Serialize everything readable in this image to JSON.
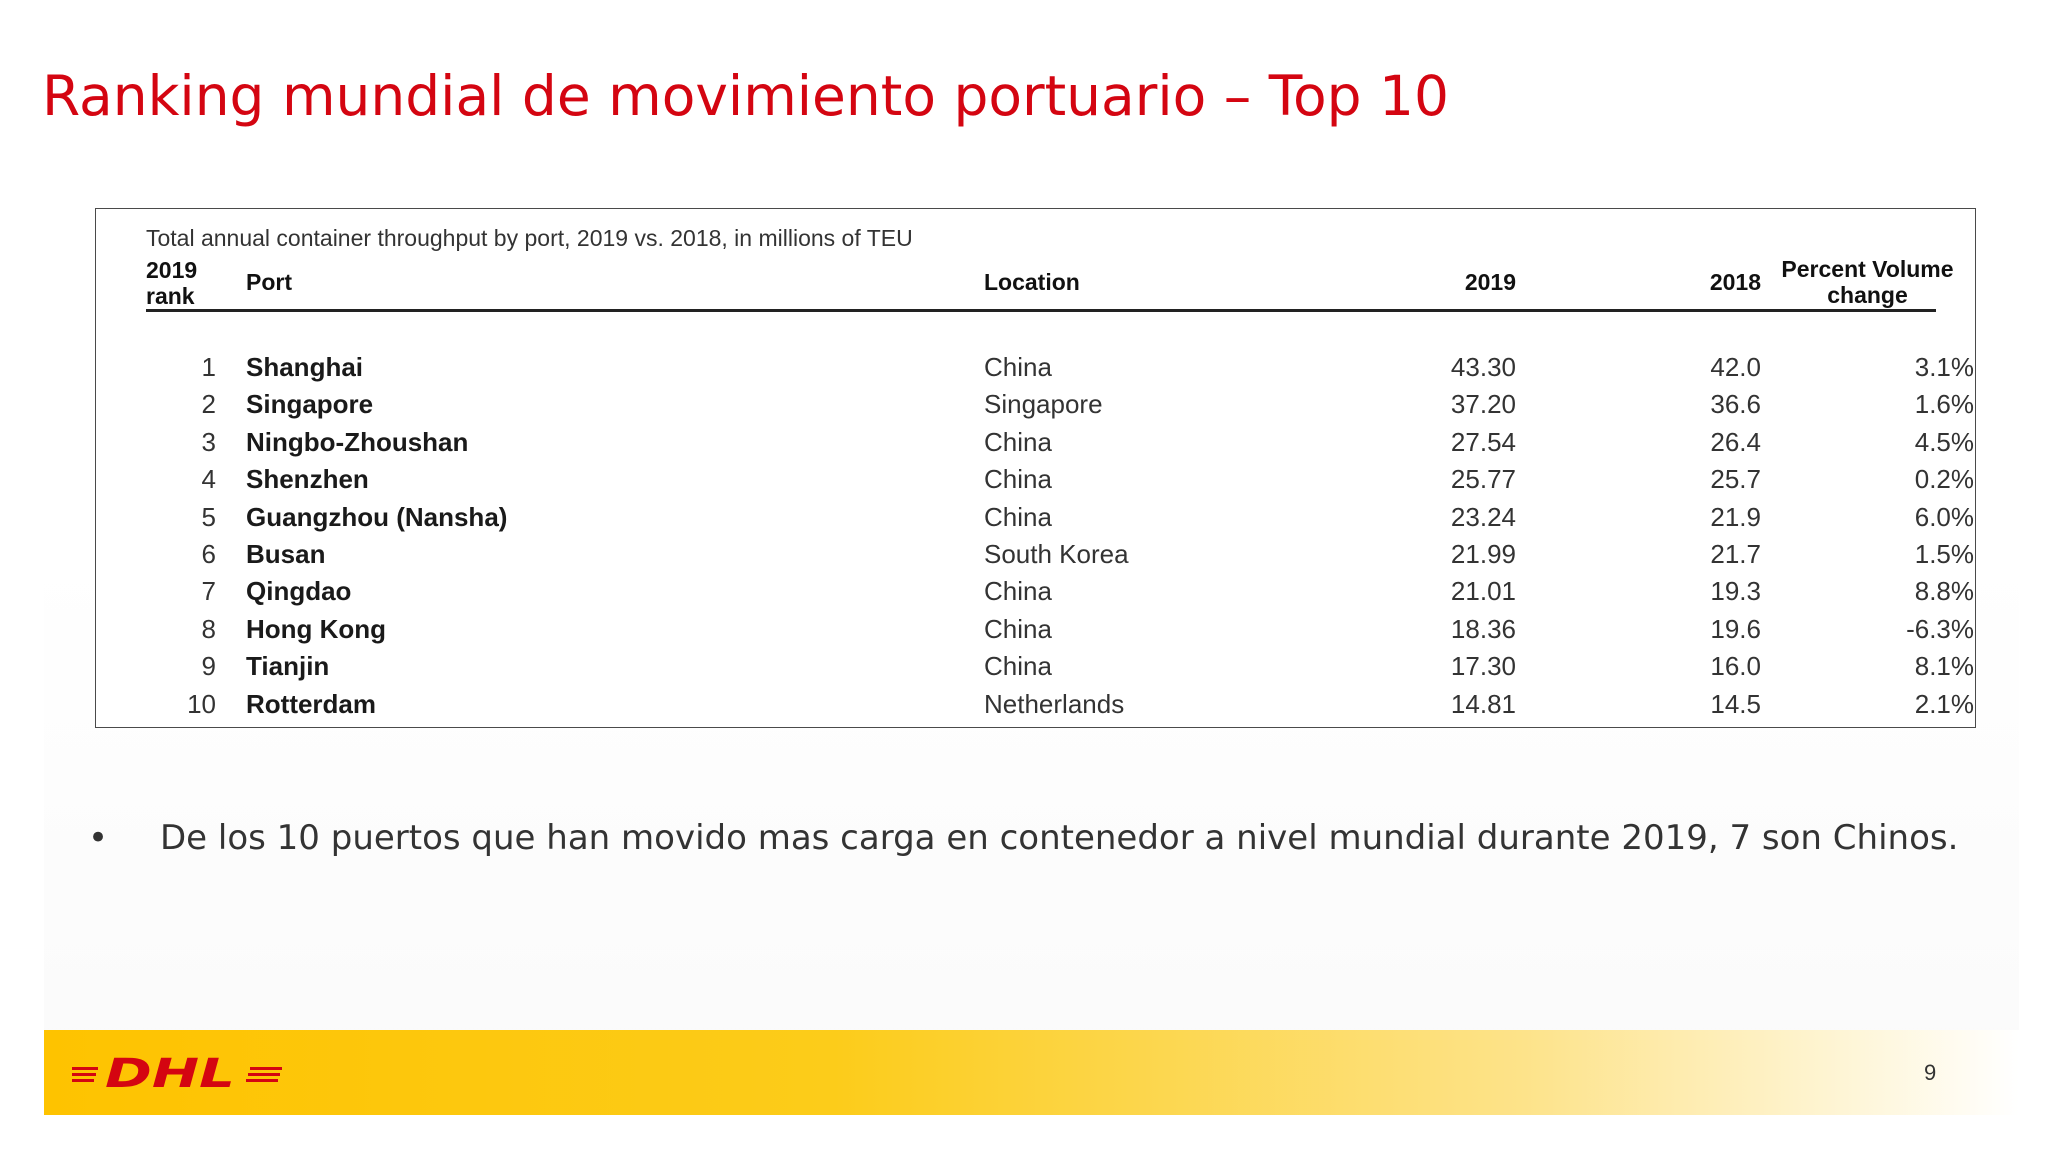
{
  "slide": {
    "title": "Ranking mundial de movimiento portuario – Top 10",
    "page_number": "9",
    "logo_text": "DHL",
    "brand_color": "#d40511",
    "accent_color": "#fec300"
  },
  "table": {
    "caption": "Total annual container throughput by port, 2019 vs. 2018, in millions of TEU",
    "headers": {
      "rank_line1": "2019",
      "rank_line2": "rank",
      "port": "Port",
      "location": "Location",
      "y2019": "2019",
      "y2018": "2018",
      "pct_line1": "Percent Volume",
      "pct_line2": "change"
    },
    "rows": [
      {
        "rank": "1",
        "port": "Shanghai",
        "location": "China",
        "y2019": "43.30",
        "y2018": "42.0",
        "pct": "3.1%"
      },
      {
        "rank": "2",
        "port": "Singapore",
        "location": "Singapore",
        "y2019": "37.20",
        "y2018": "36.6",
        "pct": "1.6%"
      },
      {
        "rank": "3",
        "port": "Ningbo-Zhoushan",
        "location": "China",
        "y2019": "27.54",
        "y2018": "26.4",
        "pct": "4.5%"
      },
      {
        "rank": "4",
        "port": "Shenzhen",
        "location": "China",
        "y2019": "25.77",
        "y2018": "25.7",
        "pct": "0.2%"
      },
      {
        "rank": "5",
        "port": "Guangzhou (Nansha)",
        "location": "China",
        "y2019": "23.24",
        "y2018": "21.9",
        "pct": "6.0%"
      },
      {
        "rank": "6",
        "port": "Busan",
        "location": "South Korea",
        "y2019": "21.99",
        "y2018": "21.7",
        "pct": "1.5%"
      },
      {
        "rank": "7",
        "port": "Qingdao",
        "location": "China",
        "y2019": "21.01",
        "y2018": "19.3",
        "pct": "8.8%"
      },
      {
        "rank": "8",
        "port": "Hong Kong",
        "location": "China",
        "y2019": "18.36",
        "y2018": "19.6",
        "pct": "-6.3%"
      },
      {
        "rank": "9",
        "port": "Tianjin",
        "location": "China",
        "y2019": "17.30",
        "y2018": "16.0",
        "pct": "8.1%"
      },
      {
        "rank": "10",
        "port": "Rotterdam",
        "location": "Netherlands",
        "y2019": "14.81",
        "y2018": "14.5",
        "pct": "2.1%"
      }
    ]
  },
  "bullets": [
    {
      "marker": "•",
      "text": "De los 10 puertos que han movido mas carga en contenedor a nivel mundial durante 2019, 7 son Chinos."
    }
  ]
}
